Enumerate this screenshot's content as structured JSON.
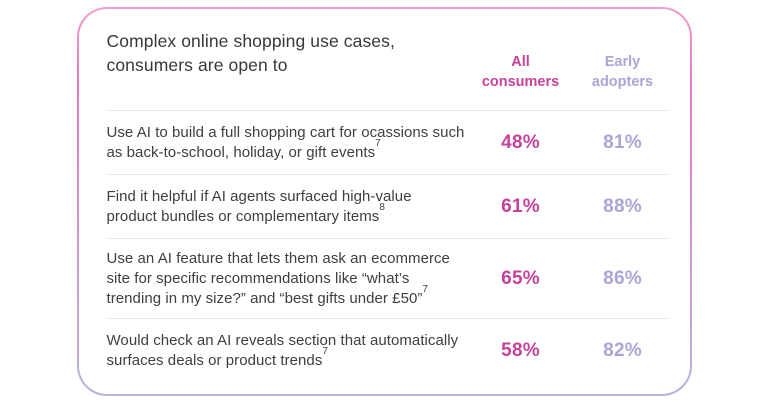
{
  "card": {
    "title": "Complex online shopping use cases, consumers are open to",
    "columns": {
      "all_consumers": "All consumers",
      "early_adopters": "Early adopters"
    }
  },
  "rows": [
    {
      "text": "Use AI to build a full shopping cart for ocassions such as back-to-school, holiday, or gift events",
      "footnote": "7",
      "all_consumers": "48%",
      "early_adopters": "81%"
    },
    {
      "text": "Find it helpful if AI agents surfaced high-value product bundles or complementary items",
      "footnote": "8",
      "all_consumers": "61%",
      "early_adopters": "88%"
    },
    {
      "text": "Use an AI feature that lets them ask an ecommerce site for specific recommendations like “what’s trending in my size?” and “best gifts under £50”",
      "footnote": "7",
      "all_consumers": "65%",
      "early_adopters": "86%"
    },
    {
      "text": "Would check an AI reveals section that automatically surfaces deals or product trends",
      "footnote": "7",
      "all_consumers": "58%",
      "early_adopters": "82%"
    }
  ],
  "colors": {
    "accent_pink": "#c6429a",
    "accent_lavender": "#a9a6d6",
    "body_text": "#3c4043",
    "divider": "#e9e9ec",
    "border_gradient_top": "#f09fcf",
    "border_gradient_bottom": "#b7b3dd"
  },
  "chart_data": {
    "type": "table",
    "title": "Complex online shopping use cases, consumers are open to",
    "categories": [
      "Use AI to build a full shopping cart for ocassions such as back-to-school, holiday, or gift events",
      "Find it helpful if AI agents surfaced high-value product bundles or complementary items",
      "Use an AI feature that lets them ask an ecommerce site for specific recommendations like “what’s trending in my size?” and “best gifts under £50”",
      "Would check an AI reveals section that automatically surfaces deals or product trends"
    ],
    "series": [
      {
        "name": "All consumers",
        "values": [
          48,
          61,
          65,
          58
        ],
        "unit": "%"
      },
      {
        "name": "Early adopters",
        "values": [
          81,
          88,
          86,
          82
        ],
        "unit": "%"
      }
    ],
    "footnotes": [
      "7",
      "8",
      "7",
      "7"
    ],
    "layout": "two-column stat table, no gridlines, row dividers only"
  }
}
